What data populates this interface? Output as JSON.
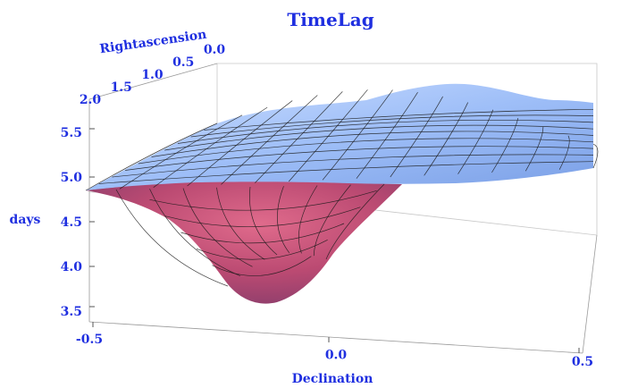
{
  "chart_data": {
    "type": "surface3d",
    "title": "TimeLag",
    "xlabel": "Declination",
    "ylabel": "Rightascension",
    "zlabel": "days",
    "x_ticks": [
      "-0.5",
      "0.0",
      "0.5"
    ],
    "y_ticks": [
      "0.0",
      "0.5",
      "1.0",
      "1.5",
      "2.0"
    ],
    "z_ticks": [
      "3.5",
      "4.0",
      "4.5",
      "5.0",
      "5.5"
    ],
    "xlim": [
      -0.55,
      0.55
    ],
    "ylim": [
      0.0,
      2.0
    ],
    "zlim": [
      3.3,
      5.7
    ],
    "min_point": {
      "x": -0.1,
      "y": 0.0,
      "z": 3.6
    },
    "colors": {
      "text": "#1f2fe0",
      "surface_top": "#a9c6ff",
      "surface_bottom": "#d2507a",
      "mesh": "#1a1a1a"
    }
  }
}
